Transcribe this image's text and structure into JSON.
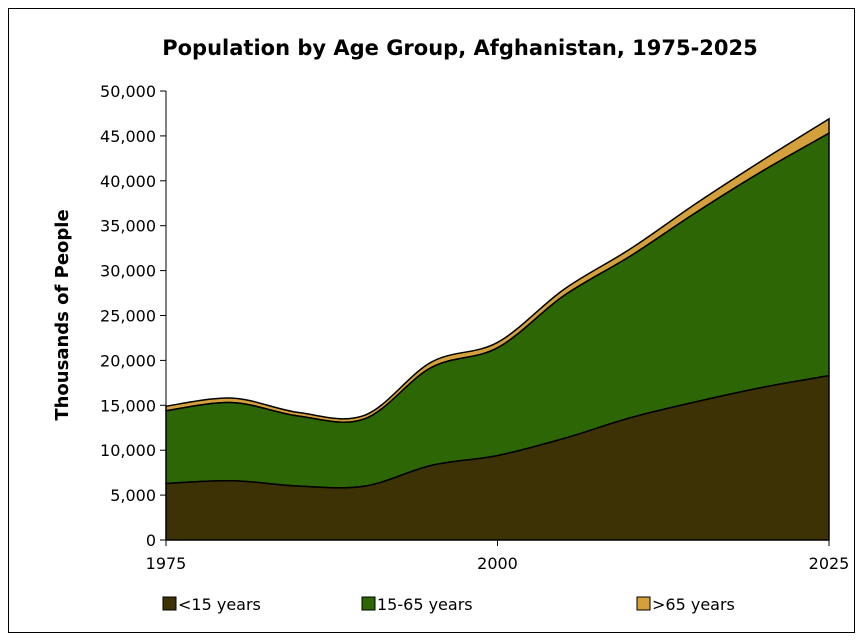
{
  "chart_data": {
    "type": "area",
    "stacked": true,
    "title": "Population by Age Group, Afghanistan, 1975-2025",
    "xlabel": "",
    "ylabel": "Thousands of People",
    "x": [
      1975,
      1980,
      1985,
      1990,
      1995,
      2000,
      2005,
      2010,
      2015,
      2020,
      2025
    ],
    "x_tick_labels": [
      "1975",
      "2000",
      "2025"
    ],
    "x_ticks": [
      1975,
      2000,
      2025
    ],
    "xlim": [
      1975,
      2025
    ],
    "ylim": [
      0,
      50000
    ],
    "y_ticks": [
      0,
      5000,
      10000,
      15000,
      20000,
      25000,
      30000,
      35000,
      40000,
      45000,
      50000
    ],
    "y_tick_labels": [
      "0",
      "5,000",
      "10,000",
      "15,000",
      "20,000",
      "25,000",
      "30,000",
      "35,000",
      "40,000",
      "45,000",
      "50,000"
    ],
    "grid": false,
    "legend_position": "bottom",
    "series": [
      {
        "name": "<15 years",
        "color": "#3d3206",
        "values": [
          6300,
          6600,
          6000,
          6000,
          8300,
          9400,
          11300,
          13600,
          15400,
          17000,
          18300
        ]
      },
      {
        "name": "15-65 years",
        "color": "#2d6605",
        "values": [
          8100,
          8700,
          7800,
          7500,
          10900,
          12000,
          15900,
          18000,
          21100,
          24100,
          27000
        ]
      },
      {
        "name": ">65 years",
        "color": "#d4a03c",
        "values": [
          500,
          500,
          400,
          400,
          600,
          600,
          700,
          800,
          1000,
          1200,
          1600
        ]
      }
    ]
  }
}
